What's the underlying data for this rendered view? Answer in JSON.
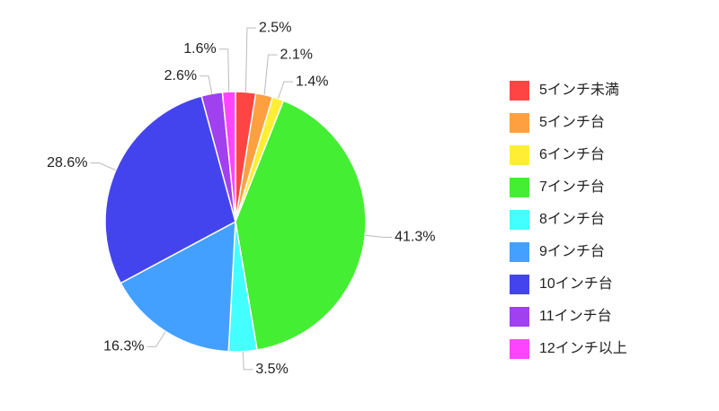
{
  "chart_data": {
    "type": "pie",
    "categories": [
      "5インチ未満",
      "5インチ台",
      "6インチ台",
      "7インチ台",
      "8インチ台",
      "9インチ台",
      "10インチ台",
      "11インチ台",
      "12インチ以上"
    ],
    "values": [
      2.5,
      2.1,
      1.4,
      41.3,
      3.5,
      16.3,
      28.6,
      2.6,
      1.6
    ],
    "value_labels": [
      "2.5%",
      "2.1%",
      "1.4%",
      "41.3%",
      "3.5%",
      "16.3%",
      "28.6%",
      "2.6%",
      "1.6%"
    ],
    "colors": [
      "#ff4444",
      "#ffa040",
      "#ffee33",
      "#44ee33",
      "#44ffff",
      "#44a0ff",
      "#4444ee",
      "#a040ee",
      "#ff44ff"
    ],
    "legend": "right"
  }
}
